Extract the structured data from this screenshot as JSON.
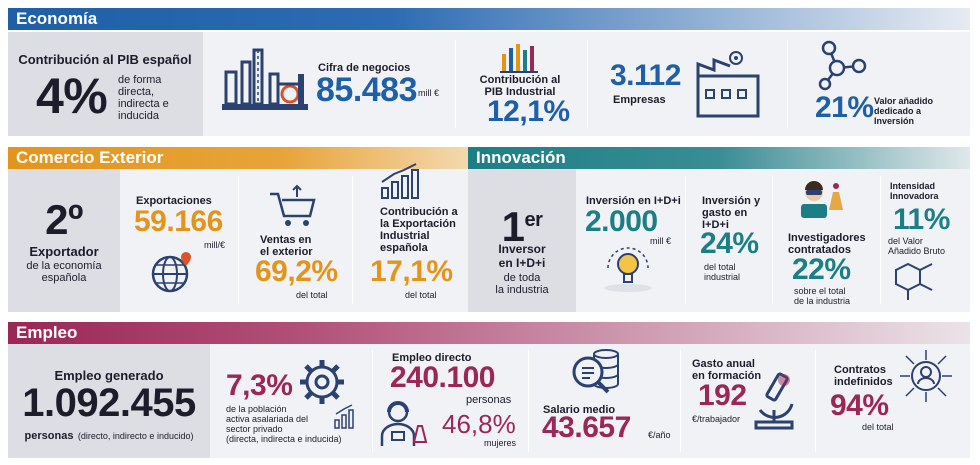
{
  "economia": {
    "title": "Economía",
    "contrib_label": "Contribución al PIB español",
    "contrib_value": "4%",
    "contrib_desc": [
      "de forma",
      "directa,",
      "indirecta e",
      "inducida"
    ],
    "cifra_label": "Cifra de negocios",
    "cifra_value": "85.483",
    "cifra_unit": "mill €",
    "pib_ind_label": [
      "Contribución al",
      "PIB Industrial"
    ],
    "pib_ind_value": "12,1%",
    "empresas_value": "3.112",
    "empresas_label": "Empresas",
    "va_value": "21%",
    "va_label": [
      "Valor añadido",
      "dedicado a",
      "Inversión"
    ]
  },
  "comercio": {
    "title": "Comercio Exterior",
    "rank_value": "2º",
    "rank_label": "Exportador",
    "rank_desc": [
      "de la economía",
      "española"
    ],
    "export_label": "Exportaciones",
    "export_value": "59.166",
    "export_unit": "mill/€",
    "ventas_label": [
      "Ventas en",
      "el exterior"
    ],
    "ventas_value": "69,2%",
    "ventas_unit": "del total",
    "contrib_label": [
      "Contribución a",
      "la Exportación",
      "Industrial",
      "española"
    ],
    "contrib_value": "17,1%",
    "contrib_unit": "del total"
  },
  "innovacion": {
    "title": "Innovación",
    "rank_value": "1",
    "rank_sup": "er",
    "rank_label": [
      "Inversor",
      "en I+D+i"
    ],
    "rank_desc": [
      "de toda",
      "la industria"
    ],
    "inv_label": "Inversión en I+D+i",
    "inv_value": "2.000",
    "inv_unit": "mill €",
    "gasto_label": [
      "Inversión y",
      "gasto en",
      "I+D+i"
    ],
    "gasto_value": "24%",
    "gasto_unit": [
      "del total",
      "industrial"
    ],
    "invest_label": [
      "Investigadores",
      "contratados"
    ],
    "invest_value": "22%",
    "invest_unit": [
      "sobre el total",
      "de la industria"
    ],
    "intens_label": [
      "Intensidad",
      "Innovadora"
    ],
    "intens_value": "11%",
    "intens_unit": [
      "del Valor",
      "Añadido Bruto"
    ]
  },
  "empleo": {
    "title": "Empleo",
    "gen_label": "Empleo generado",
    "gen_value": "1.092.455",
    "gen_unit": "personas",
    "gen_note": "(directo, indirecto e inducido)",
    "priv_value": "7,3%",
    "priv_desc": [
      "de la población",
      "activa asalariada del",
      "sector privado",
      "(directa, indirecta e inducida)"
    ],
    "directo_label": "Empleo directo",
    "directo_value": "240.100",
    "directo_unit": "personas",
    "mujeres_value": "46,8%",
    "mujeres_unit": "mujeres",
    "salario_label": "Salario medio",
    "salario_value": "43.657",
    "salario_unit": "€/año",
    "formacion_label": [
      "Gasto anual",
      "en formación"
    ],
    "formacion_value": "192",
    "formacion_unit": "€/trabajador",
    "contratos_label": [
      "Contratos",
      "indefinidos"
    ],
    "contratos_value": "94%",
    "contratos_unit": "del total"
  },
  "colors": {
    "blue": "#1e5fa8",
    "orange": "#e3941b",
    "teal": "#1c7f86",
    "magenta": "#9a2756"
  }
}
